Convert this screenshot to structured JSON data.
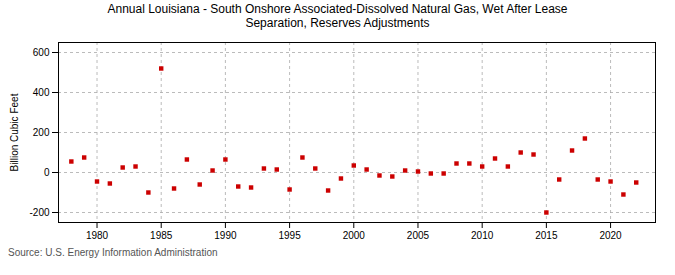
{
  "chart_data": {
    "type": "scatter",
    "title": "Annual Louisiana - South Onshore Associated-Dissolved Natural Gas, Wet After Lease\nSeparation, Reserves Adjustments",
    "ylabel": "Billion Cubic Feet",
    "source": "Source: U.S. Energy Information Administration",
    "color": "#cc0000",
    "marker": "square",
    "x": [
      1978,
      1979,
      1980,
      1981,
      1982,
      1983,
      1984,
      1985,
      1986,
      1987,
      1988,
      1989,
      1990,
      1991,
      1992,
      1993,
      1994,
      1995,
      1996,
      1997,
      1998,
      1999,
      2000,
      2001,
      2002,
      2003,
      2004,
      2005,
      2006,
      2007,
      2008,
      2009,
      2010,
      2011,
      2012,
      2013,
      2014,
      2015,
      2016,
      2017,
      2018,
      2019,
      2020,
      2021,
      2022
    ],
    "values": [
      55,
      75,
      -45,
      -55,
      25,
      30,
      -100,
      520,
      -80,
      65,
      -60,
      10,
      65,
      -70,
      -75,
      20,
      15,
      -85,
      75,
      20,
      -90,
      -30,
      35,
      15,
      -15,
      -20,
      10,
      5,
      -5,
      -5,
      45,
      45,
      30,
      70,
      30,
      100,
      90,
      -200,
      -35,
      110,
      170,
      -35,
      -45,
      -110,
      -50
    ],
    "xlim": [
      1977,
      2023.5
    ],
    "ylim": [
      -250,
      650
    ],
    "xticks": [
      1980,
      1985,
      1990,
      1995,
      2000,
      2005,
      2010,
      2015,
      2020
    ],
    "yticks": [
      -200,
      0,
      200,
      400,
      600
    ],
    "grid": true
  }
}
